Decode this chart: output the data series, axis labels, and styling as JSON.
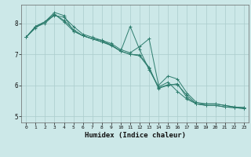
{
  "xlabel": "Humidex (Indice chaleur)",
  "bg_color": "#cce8e8",
  "line_color": "#2e7d6e",
  "grid_color": "#aacccc",
  "x_values": [
    0,
    1,
    2,
    3,
    4,
    5,
    6,
    7,
    8,
    9,
    10,
    11,
    12,
    13,
    14,
    15,
    16,
    17,
    18,
    19,
    20,
    21,
    22,
    23
  ],
  "series": [
    [
      7.55,
      7.9,
      8.05,
      8.35,
      8.25,
      7.75,
      7.6,
      7.5,
      7.45,
      7.35,
      7.15,
      7.05,
      7.25,
      7.5,
      6.0,
      6.3,
      6.2,
      5.75,
      5.45,
      5.4,
      5.4,
      5.35,
      5.3,
      5.28
    ],
    [
      7.55,
      7.9,
      8.05,
      8.25,
      8.2,
      7.9,
      7.65,
      7.55,
      7.45,
      7.3,
      7.1,
      7.9,
      7.15,
      6.5,
      5.95,
      6.1,
      5.8,
      5.55,
      5.4,
      5.4,
      5.4,
      5.35,
      5.3,
      5.28
    ],
    [
      7.55,
      7.85,
      8.05,
      8.3,
      8.05,
      7.75,
      7.6,
      7.5,
      7.4,
      7.3,
      7.1,
      7.0,
      6.95,
      6.55,
      5.9,
      6.0,
      6.05,
      5.6,
      5.4,
      5.35,
      5.35,
      5.3,
      5.28,
      5.25
    ],
    [
      7.55,
      7.88,
      8.0,
      8.28,
      8.1,
      7.8,
      7.6,
      7.5,
      7.4,
      7.28,
      7.1,
      7.0,
      6.98,
      6.58,
      5.92,
      6.02,
      6.02,
      5.68,
      5.4,
      5.35,
      5.35,
      5.3,
      5.28,
      5.25
    ]
  ],
  "ylim": [
    4.8,
    8.6
  ],
  "xlim": [
    -0.5,
    23.5
  ],
  "yticks": [
    5,
    6,
    7,
    8
  ],
  "xticks": [
    0,
    1,
    2,
    3,
    4,
    5,
    6,
    7,
    8,
    9,
    10,
    11,
    12,
    13,
    14,
    15,
    16,
    17,
    18,
    19,
    20,
    21,
    22,
    23
  ]
}
